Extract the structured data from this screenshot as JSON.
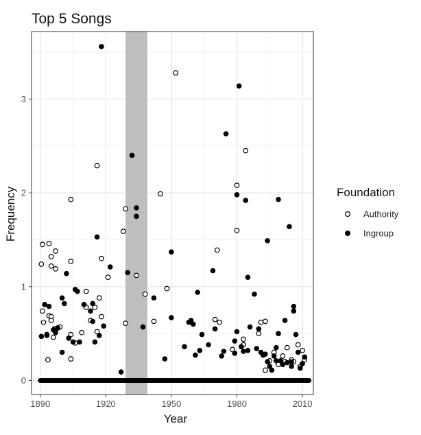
{
  "chart_data": {
    "type": "scatter",
    "title": "Top 5 Songs",
    "xlabel": "Year",
    "ylabel": "Frequency",
    "xlim": [
      1886,
      2015
    ],
    "ylim": [
      -0.15,
      3.72
    ],
    "x_ticks": [
      1890,
      1920,
      1950,
      1980,
      2010
    ],
    "y_ticks": [
      0,
      1,
      2,
      3
    ],
    "x_tick_labels": [
      "1890",
      "1920",
      "1950",
      "1980",
      "2010"
    ],
    "y_tick_labels": [
      "0",
      "1",
      "2",
      "3"
    ],
    "grid": true,
    "legend_position": "right",
    "shaded_region": {
      "x": [
        1929,
        1939
      ],
      "color": "#bebebe"
    },
    "legend": {
      "title": "Foundation",
      "items": [
        {
          "label": "Authority",
          "marker": "open-circle"
        },
        {
          "label": "Ingroup",
          "marker": "filled-circle"
        }
      ]
    },
    "zero_baseline": {
      "x_range": [
        1890,
        2013
      ],
      "step": 0.5,
      "value": 0
    },
    "series": [
      {
        "name": "Authority",
        "marker": "open-circle",
        "points": [
          [
            1890.5,
            1.24
          ],
          [
            1891,
            1.45
          ],
          [
            1891,
            0.74
          ],
          [
            1891.5,
            0.62
          ],
          [
            1893,
            0.49
          ],
          [
            1893.5,
            0.22
          ],
          [
            1894,
            1.46
          ],
          [
            1894,
            0.69
          ],
          [
            1895,
            1.32
          ],
          [
            1895,
            1.22
          ],
          [
            1895,
            0.68
          ],
          [
            1895,
            0.64
          ],
          [
            1896,
            0.46
          ],
          [
            1896.5,
            0.55
          ],
          [
            1897,
            1.38
          ],
          [
            1897,
            1.19
          ],
          [
            1898,
            0.56
          ],
          [
            1899,
            0.57
          ],
          [
            1904,
            1.93
          ],
          [
            1904,
            1.27
          ],
          [
            1904,
            0.49
          ],
          [
            1904,
            0.23
          ],
          [
            1906,
            0.4
          ],
          [
            1909,
            0.51
          ],
          [
            1911,
            0.95
          ],
          [
            1911,
            0.78
          ],
          [
            1913,
            0.64
          ],
          [
            1915,
            0.78
          ],
          [
            1916,
            0.52
          ],
          [
            1916,
            2.29
          ],
          [
            1917,
            0.88
          ],
          [
            1918,
            0.68
          ],
          [
            1918,
            1.3
          ],
          [
            1921,
            1.1
          ],
          [
            1928,
            1.59
          ],
          [
            1929,
            1.83
          ],
          [
            1929,
            0.61
          ],
          [
            1934,
            1.12
          ],
          [
            1938,
            0.92
          ],
          [
            1942,
            0.63
          ],
          [
            1945,
            1.99
          ],
          [
            1948,
            0.98
          ],
          [
            1952,
            3.28
          ],
          [
            1970,
            0.65
          ],
          [
            1971,
            1.39
          ],
          [
            1972,
            0.62
          ],
          [
            1978,
            0.33
          ],
          [
            1980,
            1.6
          ],
          [
            1980,
            2.08
          ],
          [
            1983,
            0.44
          ],
          [
            1983,
            0.38
          ],
          [
            1984,
            2.45
          ],
          [
            1990,
            0.5
          ],
          [
            1991,
            0.62
          ],
          [
            1993,
            0.11
          ],
          [
            1993,
            0.63
          ],
          [
            1995,
            0.21
          ],
          [
            1997,
            0.3
          ],
          [
            1999,
            0.17
          ],
          [
            2001,
            0.26
          ],
          [
            2002,
            0.2
          ],
          [
            2003,
            0.35
          ],
          [
            2005,
            0.22
          ],
          [
            2006,
            0.2
          ],
          [
            2008,
            0.38
          ],
          [
            2009,
            0.15
          ],
          [
            2010,
            0.32
          ],
          [
            2011,
            0.22
          ]
        ]
      },
      {
        "name": "Ingroup",
        "marker": "filled-circle",
        "points": [
          [
            1890.5,
            0.47
          ],
          [
            1892,
            0.81
          ],
          [
            1893,
            0.48
          ],
          [
            1894,
            0.79
          ],
          [
            1896,
            0.54
          ],
          [
            1897,
            0.51
          ],
          [
            1898,
            0.56
          ],
          [
            1900,
            0.3
          ],
          [
            1900,
            0.88
          ],
          [
            1901,
            0.82
          ],
          [
            1902,
            1.14
          ],
          [
            1903,
            0.45
          ],
          [
            1905,
            0.41
          ],
          [
            1906,
            0.97
          ],
          [
            1907,
            0.95
          ],
          [
            1908,
            0.41
          ],
          [
            1910,
            0.81
          ],
          [
            1913,
            0.74
          ],
          [
            1914,
            0.63
          ],
          [
            1914,
            0.82
          ],
          [
            1915,
            0.41
          ],
          [
            1916,
            1.53
          ],
          [
            1917,
            0.48
          ],
          [
            1918,
            3.56
          ],
          [
            1919,
            0.58
          ],
          [
            1922,
            1.21
          ],
          [
            1927,
            0.09
          ],
          [
            1930,
            1.15
          ],
          [
            1932,
            2.4
          ],
          [
            1934,
            1.84
          ],
          [
            1934,
            1.75
          ],
          [
            1937,
            0.57
          ],
          [
            1942,
            0.88
          ],
          [
            1947,
            0.23
          ],
          [
            1950,
            0.67
          ],
          [
            1950,
            1.37
          ],
          [
            1956,
            0.36
          ],
          [
            1958,
            0.62
          ],
          [
            1959,
            0.64
          ],
          [
            1960,
            0.6
          ],
          [
            1961,
            0.27
          ],
          [
            1962,
            0.94
          ],
          [
            1963,
            0.32
          ],
          [
            1964,
            0.49
          ],
          [
            1967,
            0.38
          ],
          [
            1969,
            1.17
          ],
          [
            1970,
            0.55
          ],
          [
            1973,
            0.26
          ],
          [
            1974,
            0.31
          ],
          [
            1975,
            2.63
          ],
          [
            1979,
            0.29
          ],
          [
            1979,
            0.42
          ],
          [
            1980,
            1.98
          ],
          [
            1980,
            0.52
          ],
          [
            1981,
            3.14
          ],
          [
            1982,
            0.36
          ],
          [
            1983,
            0.31
          ],
          [
            1984,
            1.92
          ],
          [
            1985,
            1.1
          ],
          [
            1985,
            0.32
          ],
          [
            1986,
            0.57
          ],
          [
            1988,
            0.92
          ],
          [
            1989,
            0.34
          ],
          [
            1990,
            0.55
          ],
          [
            1991,
            0.3
          ],
          [
            1992,
            0.27
          ],
          [
            1993,
            0.28
          ],
          [
            1994,
            0.2
          ],
          [
            1994,
            1.49
          ],
          [
            1995,
            0.15
          ],
          [
            1996,
            0.11
          ],
          [
            1997,
            0.26
          ],
          [
            1998,
            0.21
          ],
          [
            1998,
            0.35
          ],
          [
            1999,
            1.93
          ],
          [
            1999,
            0.5
          ],
          [
            2000,
            0.21
          ],
          [
            2001,
            0.17
          ],
          [
            2002,
            0.64
          ],
          [
            2003,
            0.19
          ],
          [
            2004,
            1.64
          ],
          [
            2005,
            0.2
          ],
          [
            2005,
            0.15
          ],
          [
            2006,
            0.79
          ],
          [
            2006,
            0.74
          ],
          [
            2007,
            0.49
          ],
          [
            2008,
            0.3
          ],
          [
            2009,
            0.13
          ],
          [
            2010,
            0.18
          ],
          [
            2011,
            0.25
          ]
        ]
      }
    ]
  }
}
